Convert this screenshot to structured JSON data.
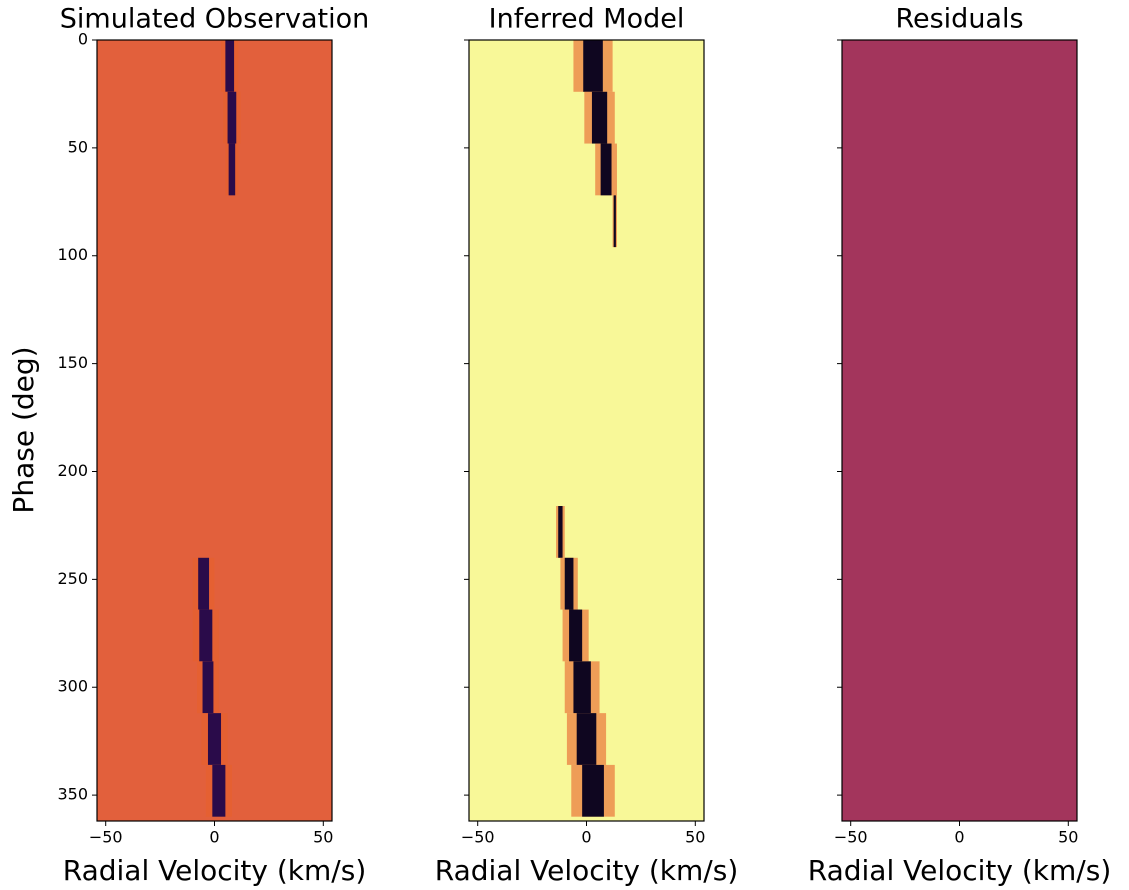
{
  "chart_data": [
    {
      "type": "heatmap",
      "title": "Simulated Observation",
      "xlabel": "Radial Velocity (km/s)",
      "ylabel": "Phase (deg)",
      "xlim": [
        -54,
        54
      ],
      "xticks": [
        {
          "value": -50,
          "label": "−50"
        },
        0,
        50
      ],
      "ylim": [
        0,
        362
      ],
      "y_inverted": true,
      "yticks": [
        0,
        50,
        100,
        150,
        200,
        250,
        300,
        350
      ],
      "background": "#e2603c",
      "line_color": "#2a0b4a",
      "phase_bins": [
        0,
        24,
        48,
        72,
        96,
        120,
        144,
        168,
        192,
        216,
        240,
        264,
        288,
        312,
        336,
        360
      ],
      "line_center": [
        7,
        8,
        8,
        null,
        null,
        null,
        null,
        null,
        null,
        null,
        -5,
        -4,
        -3,
        0,
        2
      ],
      "line_width": [
        4,
        4,
        3,
        null,
        null,
        null,
        null,
        null,
        null,
        null,
        5,
        6,
        5,
        6,
        6
      ]
    },
    {
      "type": "heatmap",
      "title": "Inferred Model",
      "xlabel": "Radial Velocity (km/s)",
      "xlim": [
        -54,
        54
      ],
      "xticks": [
        {
          "value": -50,
          "label": "−50"
        },
        0,
        50
      ],
      "ylim": [
        0,
        362
      ],
      "y_inverted": true,
      "background": "#f8f898",
      "line_color": "#0f0620",
      "phase_bins": [
        0,
        24,
        48,
        72,
        96,
        120,
        144,
        168,
        192,
        216,
        240,
        264,
        288,
        312,
        336,
        360
      ],
      "line_center": [
        3,
        6,
        9,
        13,
        null,
        null,
        null,
        null,
        null,
        -12,
        -8,
        -5,
        -2,
        0,
        3
      ],
      "line_width": [
        9,
        7,
        5,
        1,
        null,
        null,
        null,
        null,
        null,
        2,
        4,
        6,
        8,
        9,
        10
      ]
    },
    {
      "type": "heatmap",
      "title": "Residuals",
      "xlabel": "Radial Velocity (km/s)",
      "xlim": [
        -54,
        54
      ],
      "xticks": [
        {
          "value": -50,
          "label": "−50"
        },
        0,
        50
      ],
      "ylim": [
        0,
        362
      ],
      "y_inverted": true,
      "background": "#a3355c"
    }
  ]
}
